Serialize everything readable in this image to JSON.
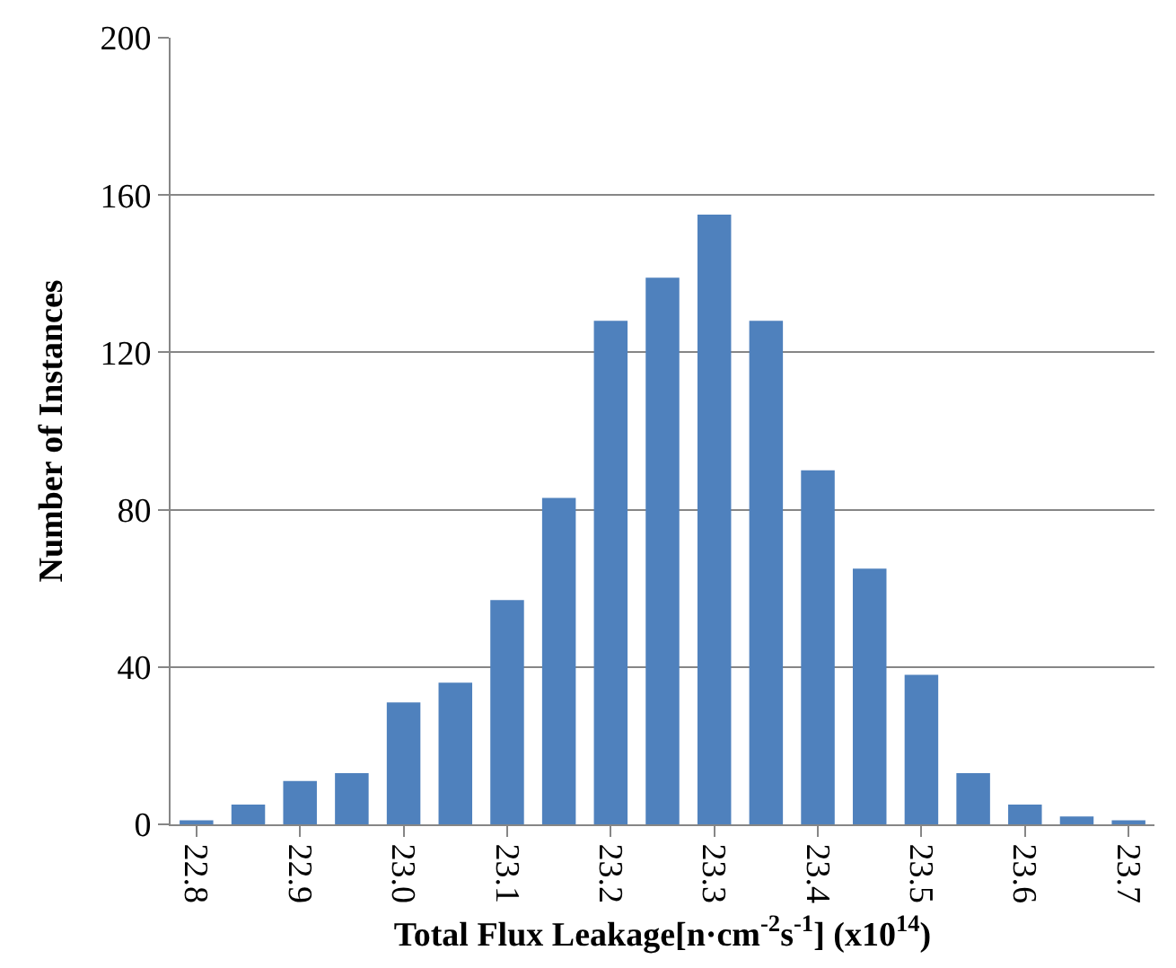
{
  "chart_data": {
    "type": "bar",
    "categories": [
      "22.8",
      null,
      "22.9",
      null,
      "23.0",
      null,
      "23.1",
      null,
      "23.2",
      null,
      "23.3",
      null,
      "23.4",
      null,
      "23.5",
      null,
      "23.6",
      null,
      "23.7"
    ],
    "values": [
      1,
      5,
      11,
      13,
      31,
      36,
      57,
      83,
      128,
      139,
      155,
      128,
      90,
      65,
      38,
      13,
      5,
      2,
      1
    ],
    "color": "#4f81bd",
    "xlabel": "Total Flux Leakage[n·cm$^{-2}$s$^{-1}$] (x10$^{14}$)",
    "ylabel": "Number of Instances",
    "ylim": [
      0,
      200
    ],
    "yticks": [
      0,
      40,
      80,
      120,
      160,
      200
    ],
    "grid": "y"
  }
}
